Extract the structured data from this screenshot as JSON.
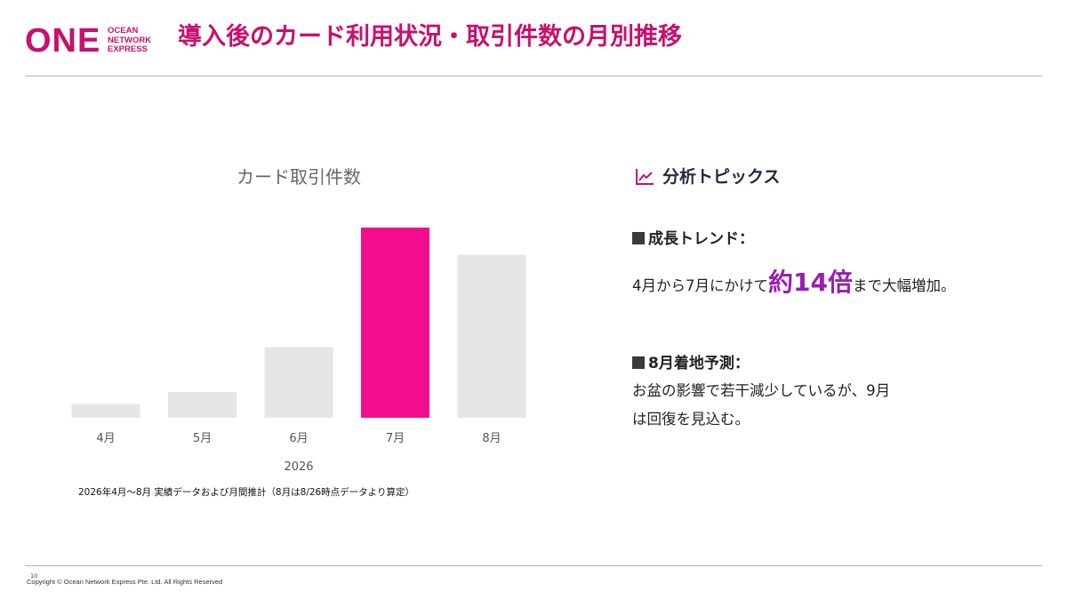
{
  "header": {
    "logo_word": "ONE",
    "logo_lines": [
      "OCEAN",
      "NETWORK",
      "EXPRESS"
    ],
    "title": "導入後のカード利用状況・取引件数の月別推移"
  },
  "chart_data": {
    "type": "bar",
    "title": "カード取引件数",
    "categories": [
      "4月",
      "5月",
      "6月",
      "7月",
      "8月"
    ],
    "values": [
      1,
      1.9,
      5.2,
      14,
      12
    ],
    "highlight_index": 3,
    "highlight_color": "#f40d8c",
    "bar_color": "#e6e6e6",
    "xlabel": "2026",
    "ylabel": "",
    "ylim": [
      0,
      14
    ],
    "grid": false,
    "legend": "none"
  },
  "chart_note": "2026年4月～8月 実績データおよび月間推計（8月は8/26時点データより算定）",
  "topics": {
    "icon": "trend-chart-icon",
    "title": "分析トピックス",
    "growth": {
      "title": "成長トレンド：",
      "text_before": "4月から7月にかけて",
      "emphasis": "約14倍",
      "text_after": "まで大幅増加。"
    },
    "forecast": {
      "title": "8月着地予測：",
      "line1": "お盆の影響で若干減少しているが、9月",
      "line2": "は回復を見込む。"
    }
  },
  "footer": {
    "page_number": "10",
    "copyright": "Copyright © Ocean Network Express Pte. Ltd. All Rights Reserved"
  },
  "colors": {
    "brand": "#c8106e",
    "emphasis": "#9c1cb4"
  }
}
